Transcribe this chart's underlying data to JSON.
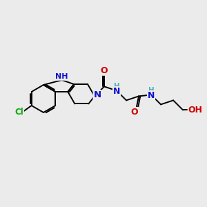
{
  "bg_color": "#ebebeb",
  "bond_color": "#000000",
  "bond_width": 1.4,
  "atom_colors": {
    "N": "#1010cc",
    "O": "#cc0000",
    "Cl": "#00aa00",
    "H": "#4ab5b5",
    "C": "#000000"
  }
}
